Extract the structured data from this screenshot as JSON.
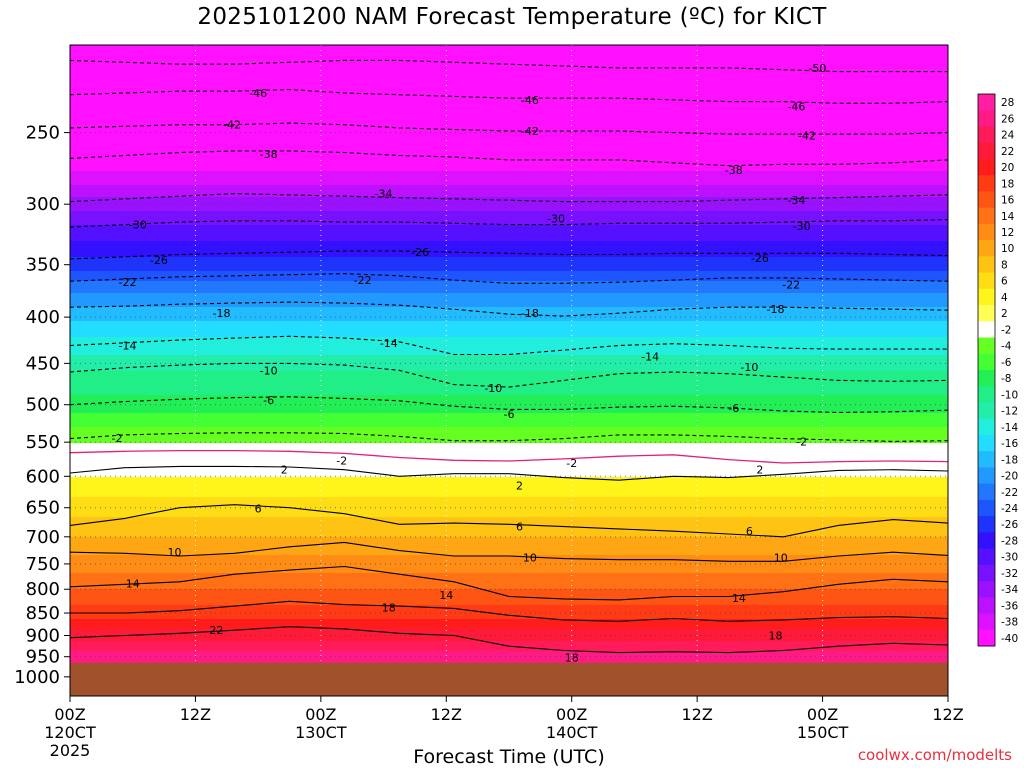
{
  "chart_data": {
    "type": "heatmap",
    "title": "2025101200 NAM Forecast Temperature (ºC) for KICT",
    "xlabel": "Forecast Time (UTC)",
    "ylabel": "",
    "credit": "coolwx.com/modelts",
    "x_hours_range": [
      0,
      84
    ],
    "pressure_range": [
      200,
      1050
    ],
    "y_scale": "log-pressure",
    "grid": "dotted",
    "x_ticks": [
      {
        "hour": 0,
        "label": "00Z",
        "sub": "120CT",
        "year": "2025"
      },
      {
        "hour": 12,
        "label": "12Z",
        "sub": "",
        "year": ""
      },
      {
        "hour": 24,
        "label": "00Z",
        "sub": "130CT",
        "year": ""
      },
      {
        "hour": 36,
        "label": "12Z",
        "sub": "",
        "year": ""
      },
      {
        "hour": 48,
        "label": "00Z",
        "sub": "140CT",
        "year": ""
      },
      {
        "hour": 60,
        "label": "12Z",
        "sub": "",
        "year": ""
      },
      {
        "hour": 72,
        "label": "00Z",
        "sub": "150CT",
        "year": ""
      },
      {
        "hour": 84,
        "label": "12Z",
        "sub": "",
        "year": ""
      }
    ],
    "y_ticks": [
      {
        "p": 250,
        "label": "250"
      },
      {
        "p": 300,
        "label": "300"
      },
      {
        "p": 350,
        "label": "350"
      },
      {
        "p": 400,
        "label": "400"
      },
      {
        "p": 450,
        "label": "450"
      },
      {
        "p": 500,
        "label": "500"
      },
      {
        "p": 550,
        "label": "550"
      },
      {
        "p": 600,
        "label": "600"
      },
      {
        "p": 650,
        "label": "650"
      },
      {
        "p": 700,
        "label": "700"
      },
      {
        "p": 750,
        "label": "750"
      },
      {
        "p": 800,
        "label": "800"
      },
      {
        "p": 850,
        "label": "850"
      },
      {
        "p": 900,
        "label": "900"
      },
      {
        "p": 950,
        "label": "950"
      },
      {
        "p": 1000,
        "label": "1000"
      }
    ],
    "ground_pressure": 965,
    "ground_color": "#a0522d",
    "colorbar": {
      "values": [
        28,
        26,
        24,
        22,
        20,
        18,
        16,
        14,
        12,
        10,
        8,
        6,
        4,
        2,
        -2,
        -4,
        -6,
        -8,
        -10,
        -12,
        -14,
        -16,
        -18,
        -20,
        -22,
        -24,
        -26,
        -28,
        -30,
        -32,
        -34,
        -36,
        -38,
        -40
      ],
      "colors": [
        "#ff1fa0",
        "#ff1a85",
        "#ff1a5a",
        "#ff1a3a",
        "#ff1c1c",
        "#ff3a14",
        "#ff5514",
        "#ff7114",
        "#ff8c14",
        "#ffa614",
        "#ffc314",
        "#ffdd14",
        "#fff51a",
        "#ffff55",
        "#ffffff",
        "#66ff22",
        "#44ff33",
        "#22ee55",
        "#22ee88",
        "#22eeaa",
        "#22eedd",
        "#22ddff",
        "#22bbff",
        "#2299ff",
        "#2277ff",
        "#1f55ff",
        "#1f33ff",
        "#3311ff",
        "#5511ff",
        "#7711ff",
        "#9911ff",
        "#bb11ff",
        "#dd11ff",
        "#ff11ff"
      ]
    },
    "levels_temperature": [
      {
        "p": 200,
        "t": -52
      },
      {
        "p": 230,
        "t": -48
      },
      {
        "p": 250,
        "t": -43
      },
      {
        "p": 270,
        "t": -39
      },
      {
        "p": 290,
        "t": -35
      },
      {
        "p": 310,
        "t": -31
      },
      {
        "p": 330,
        "t": -28
      },
      {
        "p": 350,
        "t": -25
      },
      {
        "p": 370,
        "t": -21
      },
      {
        "p": 390,
        "t": -18
      },
      {
        "p": 420,
        "t": -14
      },
      {
        "p": 460,
        "t": -10
      },
      {
        "p": 500,
        "t": -7
      },
      {
        "p": 530,
        "t": -4
      },
      {
        "p": 560,
        "t": -1
      },
      {
        "p": 580,
        "t": 1
      },
      {
        "p": 600,
        "t": 2
      },
      {
        "p": 650,
        "t": 5
      },
      {
        "p": 700,
        "t": 8
      },
      {
        "p": 750,
        "t": 11
      },
      {
        "p": 800,
        "t": 14
      },
      {
        "p": 850,
        "t": 17
      },
      {
        "p": 900,
        "t": 21
      },
      {
        "p": 950,
        "t": 25
      },
      {
        "p": 1000,
        "t": 28
      }
    ],
    "contour_lines": [
      {
        "t": -50,
        "style": "dashed",
        "p": [
          208,
          209,
          210,
          210,
          209,
          208,
          208,
          209,
          210,
          211,
          212,
          212,
          212,
          213,
          214,
          214,
          214
        ]
      },
      {
        "t": -46,
        "style": "dashed",
        "p": [
          227,
          226,
          225,
          225,
          224,
          226,
          227,
          228,
          229,
          229,
          229,
          230,
          231,
          231,
          232,
          232,
          231
        ]
      },
      {
        "t": -42,
        "style": "dashed",
        "p": [
          247,
          246,
          245,
          245,
          244,
          245,
          247,
          248,
          249,
          249,
          249,
          250,
          251,
          251,
          251,
          251,
          250
        ]
      },
      {
        "t": -38,
        "style": "dashed",
        "p": [
          267,
          265,
          263,
          262,
          262,
          263,
          265,
          266,
          268,
          268,
          268,
          270,
          272,
          271,
          271,
          270,
          268
        ]
      },
      {
        "t": -34,
        "style": "dashed",
        "p": [
          298,
          296,
          294,
          292,
          293,
          294,
          295,
          296,
          297,
          298,
          298,
          298,
          297,
          296,
          295,
          294,
          293
        ]
      },
      {
        "t": -30,
        "style": "dashed",
        "p": [
          318,
          316,
          314,
          313,
          313,
          314,
          314,
          315,
          316,
          316,
          315,
          315,
          315,
          314,
          313,
          313,
          312
        ]
      },
      {
        "t": -26,
        "style": "dashed",
        "p": [
          345,
          343,
          341,
          340,
          339,
          338,
          338,
          339,
          340,
          341,
          341,
          340,
          340,
          340,
          340,
          341,
          342
        ]
      },
      {
        "t": -22,
        "style": "dashed",
        "p": [
          365,
          363,
          361,
          360,
          359,
          358,
          360,
          364,
          367,
          367,
          366,
          364,
          362,
          362,
          363,
          364,
          365
        ]
      },
      {
        "t": -18,
        "style": "dashed",
        "p": [
          390,
          389,
          387,
          386,
          385,
          386,
          388,
          392,
          397,
          399,
          396,
          392,
          390,
          390,
          391,
          392,
          393
        ]
      },
      {
        "t": -14,
        "style": "dashed",
        "p": [
          430,
          427,
          424,
          422,
          420,
          422,
          426,
          440,
          440,
          435,
          430,
          428,
          430,
          433,
          434,
          434,
          434
        ]
      },
      {
        "t": -10,
        "style": "dashed",
        "p": [
          460,
          455,
          452,
          450,
          450,
          452,
          458,
          475,
          478,
          470,
          462,
          460,
          462,
          466,
          470,
          471,
          470
        ]
      },
      {
        "t": -6,
        "style": "dashed",
        "p": [
          500,
          496,
          493,
          491,
          490,
          492,
          495,
          502,
          506,
          506,
          503,
          502,
          504,
          508,
          510,
          509,
          507
        ]
      },
      {
        "t": -2,
        "style": "dashed",
        "p": [
          545,
          540,
          538,
          537,
          537,
          538,
          542,
          548,
          548,
          545,
          540,
          540,
          542,
          545,
          547,
          549,
          548
        ]
      },
      {
        "t": 0,
        "style": "magenta",
        "p": [
          565,
          563,
          562,
          562,
          563,
          566,
          572,
          576,
          577,
          574,
          570,
          568,
          575,
          580,
          578,
          577,
          578
        ]
      },
      {
        "t": 2,
        "style": "solid",
        "p": [
          595,
          587,
          585,
          585,
          586,
          590,
          600,
          596,
          596,
          602,
          606,
          600,
          602,
          597,
          591,
          590,
          592
        ]
      },
      {
        "t": 6,
        "style": "solid",
        "p": [
          680,
          668,
          650,
          645,
          650,
          660,
          678,
          676,
          678,
          682,
          686,
          690,
          695,
          700,
          680,
          670,
          676
        ]
      },
      {
        "t": 10,
        "style": "solid",
        "p": [
          728,
          730,
          735,
          730,
          718,
          710,
          725,
          735,
          735,
          740,
          742,
          742,
          745,
          745,
          735,
          728,
          734
        ]
      },
      {
        "t": 14,
        "style": "solid",
        "p": [
          795,
          790,
          785,
          770,
          762,
          755,
          770,
          785,
          815,
          820,
          822,
          815,
          815,
          805,
          790,
          780,
          785
        ]
      },
      {
        "t": 18,
        "style": "solid",
        "p": [
          850,
          850,
          845,
          835,
          825,
          832,
          835,
          840,
          855,
          865,
          868,
          862,
          868,
          865,
          860,
          858,
          862
        ]
      },
      {
        "t": 22,
        "style": "solid",
        "p": [
          905,
          900,
          895,
          888,
          880,
          885,
          895,
          900,
          925,
          935,
          940,
          938,
          940,
          935,
          925,
          918,
          922
        ]
      }
    ],
    "contour_labels": [
      {
        "t": -50,
        "text": "-50",
        "hour": 71.5,
        "p": 212
      },
      {
        "t": -46,
        "text": "-46",
        "hour": 18,
        "p": 226
      },
      {
        "t": -46,
        "text": "-46",
        "hour": 44,
        "p": 230
      },
      {
        "t": -46,
        "text": "-46",
        "hour": 69.5,
        "p": 234
      },
      {
        "t": -42,
        "text": "-42",
        "hour": 15.5,
        "p": 245
      },
      {
        "t": -42,
        "text": "-42",
        "hour": 44,
        "p": 249
      },
      {
        "t": -42,
        "text": "-42",
        "hour": 70.5,
        "p": 252
      },
      {
        "t": -38,
        "text": "-38",
        "hour": 19,
        "p": 264
      },
      {
        "t": -38,
        "text": "-38",
        "hour": 63.5,
        "p": 275
      },
      {
        "t": -34,
        "text": "-34",
        "hour": 30,
        "p": 292
      },
      {
        "t": -34,
        "text": "-34",
        "hour": 69.5,
        "p": 297
      },
      {
        "t": -30,
        "text": "-30",
        "hour": 6.5,
        "p": 316
      },
      {
        "t": -30,
        "text": "-30",
        "hour": 46.5,
        "p": 311
      },
      {
        "t": -30,
        "text": "-30",
        "hour": 70,
        "p": 317
      },
      {
        "t": -26,
        "text": "-26",
        "hour": 8.5,
        "p": 346
      },
      {
        "t": -26,
        "text": "-26",
        "hour": 33.5,
        "p": 339
      },
      {
        "t": -26,
        "text": "-26",
        "hour": 66,
        "p": 344
      },
      {
        "t": -22,
        "text": "-22",
        "hour": 5.5,
        "p": 366
      },
      {
        "t": -22,
        "text": "-22",
        "hour": 28,
        "p": 364
      },
      {
        "t": -22,
        "text": "-22",
        "hour": 69,
        "p": 368
      },
      {
        "t": -18,
        "text": "-18",
        "hour": 14.5,
        "p": 396
      },
      {
        "t": -18,
        "text": "-18",
        "hour": 44,
        "p": 396
      },
      {
        "t": -18,
        "text": "-18",
        "hour": 67.5,
        "p": 392
      },
      {
        "t": -14,
        "text": "-14",
        "hour": 5.5,
        "p": 430
      },
      {
        "t": -14,
        "text": "-14",
        "hour": 30.5,
        "p": 427
      },
      {
        "t": -14,
        "text": "-14",
        "hour": 55.5,
        "p": 442
      },
      {
        "t": -10,
        "text": "-10",
        "hour": 19,
        "p": 458
      },
      {
        "t": -10,
        "text": "-10",
        "hour": 40.5,
        "p": 479
      },
      {
        "t": -10,
        "text": "-10",
        "hour": 65,
        "p": 454
      },
      {
        "t": -6,
        "text": "-6",
        "hour": 19,
        "p": 494
      },
      {
        "t": -6,
        "text": "-6",
        "hour": 42,
        "p": 512
      },
      {
        "t": -6,
        "text": "-6",
        "hour": 63.5,
        "p": 504
      },
      {
        "t": -2,
        "text": "-2",
        "hour": 4.5,
        "p": 544
      },
      {
        "t": -2,
        "text": "-2",
        "hour": 26,
        "p": 576
      },
      {
        "t": -2,
        "text": "-2",
        "hour": 48,
        "p": 580
      },
      {
        "t": -2,
        "text": "-2",
        "hour": 70,
        "p": 549
      },
      {
        "t": 2,
        "text": "2",
        "hour": 20.5,
        "p": 590
      },
      {
        "t": 2,
        "text": "2",
        "hour": 43,
        "p": 614
      },
      {
        "t": 2,
        "text": "2",
        "hour": 66,
        "p": 590
      },
      {
        "t": 6,
        "text": "6",
        "hour": 18,
        "p": 651
      },
      {
        "t": 6,
        "text": "6",
        "hour": 43,
        "p": 682
      },
      {
        "t": 6,
        "text": "6",
        "hour": 65,
        "p": 690
      },
      {
        "t": 10,
        "text": "10",
        "hour": 10,
        "p": 728
      },
      {
        "t": 10,
        "text": "10",
        "hour": 44,
        "p": 738
      },
      {
        "t": 10,
        "text": "10",
        "hour": 68,
        "p": 738
      },
      {
        "t": 14,
        "text": "14",
        "hour": 6,
        "p": 788
      },
      {
        "t": 14,
        "text": "14",
        "hour": 36,
        "p": 812
      },
      {
        "t": 14,
        "text": "14",
        "hour": 64,
        "p": 818
      },
      {
        "t": 18,
        "text": "18",
        "hour": 30.5,
        "p": 838
      },
      {
        "t": 18,
        "text": "18",
        "hour": 48,
        "p": 952
      },
      {
        "t": 18,
        "text": "18",
        "hour": 67.5,
        "p": 900
      },
      {
        "t": 22,
        "text": "22",
        "hour": 14,
        "p": 888
      }
    ]
  }
}
